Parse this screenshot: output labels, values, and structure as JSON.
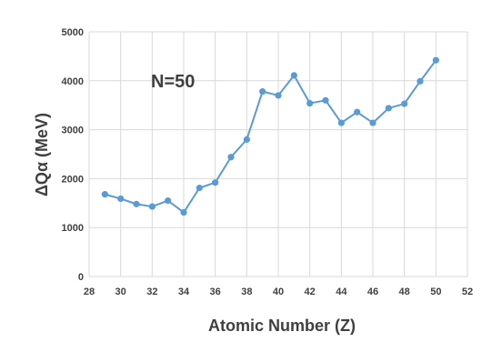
{
  "chart_data": {
    "type": "line",
    "xlabel": "Atomic Number (Z)",
    "ylabel": "ΔQα (MeV)",
    "annotation": "N=50",
    "xlim": [
      28,
      52
    ],
    "ylim": [
      0,
      5000
    ],
    "xticks": [
      "28",
      "30",
      "32",
      "34",
      "36",
      "38",
      "40",
      "42",
      "44",
      "46",
      "48",
      "50",
      "52"
    ],
    "yticks": [
      "0",
      "1000",
      "2000",
      "3000",
      "4000",
      "5000"
    ],
    "grid": true,
    "legend": "none",
    "color": "#5b9bd5",
    "series": [
      {
        "x": [
          29,
          30,
          31,
          32,
          33,
          34,
          35,
          36,
          37,
          38,
          39,
          40,
          41,
          42,
          43,
          44,
          45,
          46,
          47,
          48,
          49,
          50
        ],
        "y": [
          1680,
          1590,
          1480,
          1430,
          1550,
          1310,
          1810,
          1920,
          2440,
          2800,
          3780,
          3700,
          4110,
          3540,
          3600,
          3140,
          3360,
          3140,
          3440,
          3530,
          3990,
          4420
        ]
      }
    ]
  }
}
